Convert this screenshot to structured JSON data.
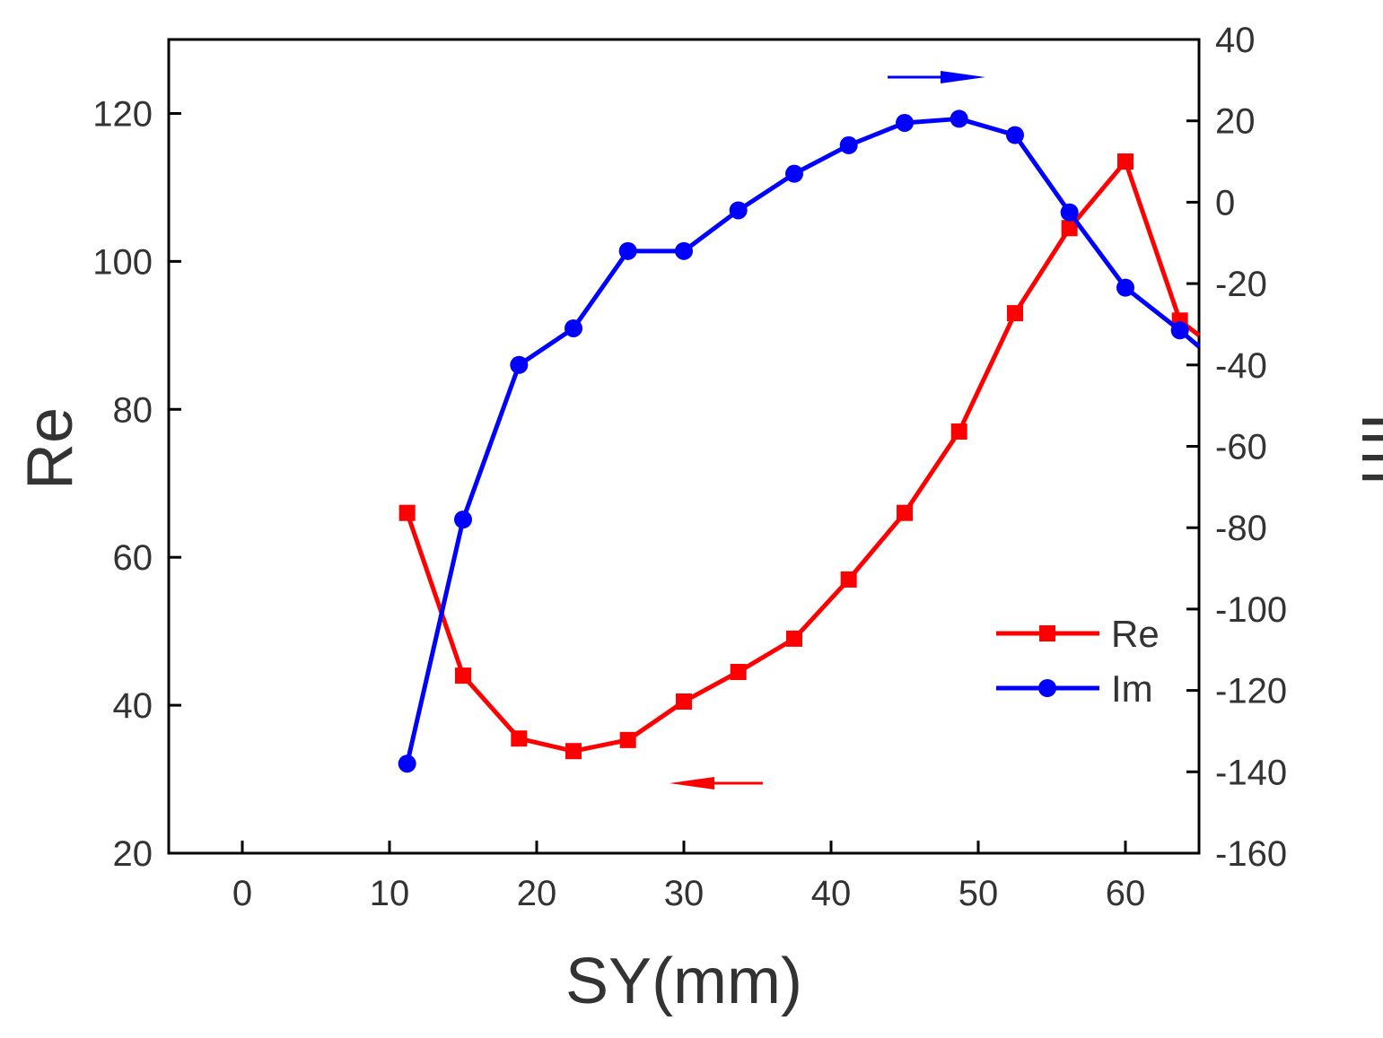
{
  "chart_data": {
    "type": "line",
    "title": "",
    "xlabel": "SY(mm)",
    "ylabel": "Re",
    "y2label": "Im",
    "xlim": [
      -5,
      65
    ],
    "ylim": [
      20,
      130
    ],
    "y2lim": [
      -160,
      40
    ],
    "xticks": [
      0,
      10,
      20,
      30,
      40,
      50,
      60
    ],
    "yticks": [
      20,
      40,
      60,
      80,
      100,
      120
    ],
    "y2ticks": [
      40,
      20,
      0,
      -20,
      -40,
      -60,
      -80,
      -100,
      -120,
      -140,
      -160
    ],
    "grid": false,
    "legend_position": "bottom-right",
    "series": [
      {
        "name": "Re",
        "axis": "left",
        "color": "#ff0000",
        "marker": "square",
        "x": [
          11.2,
          15,
          18.8,
          22.5,
          26.2,
          30,
          33.7,
          37.5,
          41.2,
          45,
          48.7,
          52.5,
          56.2,
          60,
          63.7,
          65
        ],
        "values": [
          66,
          44,
          35.5,
          33.8,
          35.3,
          40.5,
          44.5,
          49,
          57,
          66,
          77,
          93,
          104.5,
          113.5,
          92,
          90
        ]
      },
      {
        "name": "Im",
        "axis": "right",
        "color": "#0000ff",
        "marker": "circle",
        "x": [
          11.2,
          15,
          18.8,
          22.5,
          26.2,
          30,
          33.7,
          37.5,
          41.2,
          45,
          48.7,
          52.5,
          56.2,
          60,
          63.7,
          65
        ],
        "values": [
          -138,
          -78,
          -40,
          -31,
          -12,
          -12,
          -2,
          7,
          14,
          19.5,
          20.5,
          16.5,
          -2.5,
          -21,
          -31.5,
          -35.5
        ]
      }
    ],
    "annotations": [
      {
        "type": "arrow",
        "direction": "left",
        "color": "#ff0000",
        "refers_to": "Re"
      },
      {
        "type": "arrow",
        "direction": "right",
        "color": "#0000ff",
        "refers_to": "Im"
      }
    ]
  }
}
